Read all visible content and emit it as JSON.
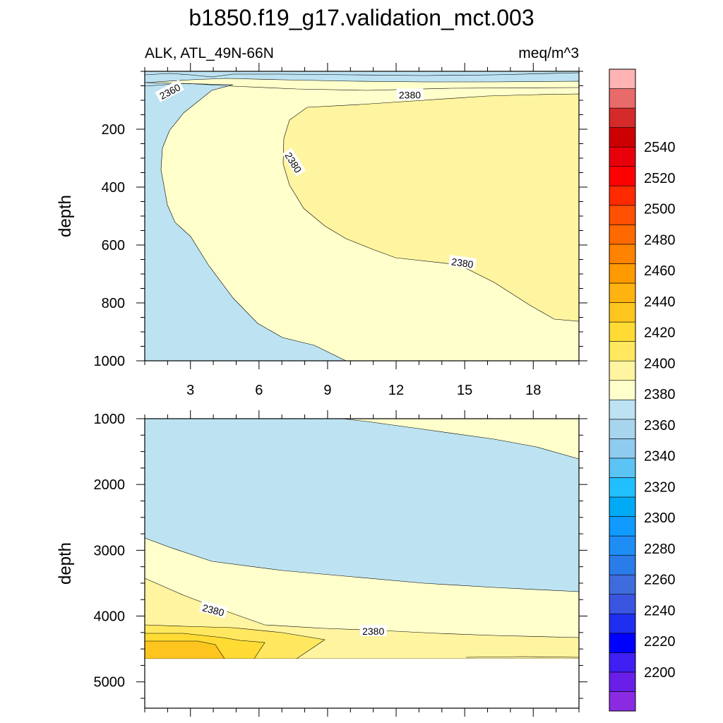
{
  "chart_data": {
    "type": "contour",
    "title": "b1850.f19_g17.validation_mct.003",
    "left_subtitle": "ALK, ATL_49N-66N",
    "right_subtitle": "meq/m^3",
    "colorbar": {
      "tick_labels": [
        "2200",
        "2220",
        "2240",
        "2260",
        "2280",
        "2300",
        "2320",
        "2340",
        "2360",
        "2380",
        "2400",
        "2420",
        "2440",
        "2460",
        "2480",
        "2500",
        "2520",
        "2540"
      ],
      "colors": [
        "#8a2be2",
        "#6a1fe8",
        "#3f1ff2",
        "#0000ff",
        "#1e2ff0",
        "#3a55e0",
        "#3e6cdc",
        "#2a7ce8",
        "#1e8ef5",
        "#119aff",
        "#00aaf5",
        "#22bfff",
        "#5cc3f5",
        "#8ecbef",
        "#a8d5ee",
        "#bde3f2",
        "#ffffcc",
        "#fff4a0",
        "#ffe85f",
        "#ffdb33",
        "#ffc51f",
        "#ffb311",
        "#ff9a00",
        "#ff8200",
        "#ff6a00",
        "#ff4f00",
        "#ff2a00",
        "#ff0000",
        "#e8000a",
        "#cc0000",
        "#d42a2a",
        "#e86a6a",
        "#ffb3b3"
      ]
    },
    "panels": [
      {
        "name": "upper",
        "ylabel": "depth",
        "y_range": [
          0,
          1000
        ],
        "y_ticks": [
          200,
          400,
          600,
          800,
          1000
        ],
        "x_range": [
          1,
          20
        ],
        "x_ticks": [
          3,
          6,
          9,
          12,
          15,
          18
        ],
        "contour_labels": [
          {
            "text": "2360",
            "x": 2.1,
            "y": 70,
            "angle": -28
          },
          {
            "text": "2380",
            "x": 12.6,
            "y": 82,
            "angle": 0
          },
          {
            "text": "2380",
            "x": 7.5,
            "y": 315,
            "angle": 58
          },
          {
            "text": "2380",
            "x": 14.9,
            "y": 662,
            "angle": 8
          }
        ]
      },
      {
        "name": "lower",
        "ylabel": "depth",
        "y_range": [
          1000,
          5400
        ],
        "y_ticks": [
          1000,
          2000,
          3000,
          4000,
          5000
        ],
        "x_range": [
          1,
          20
        ],
        "contour_labels": [
          {
            "text": "2380",
            "x": 4.0,
            "y": 3910,
            "angle": 15
          },
          {
            "text": "2380",
            "x": 11.0,
            "y": 4230,
            "angle": 0
          }
        ]
      }
    ]
  }
}
